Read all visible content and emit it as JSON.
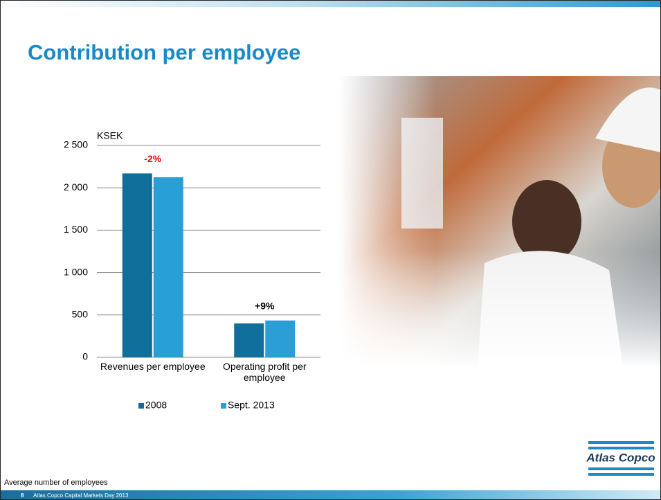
{
  "chart_data": {
    "type": "bar",
    "title": "Contribution per employee",
    "y_label": "KSEK",
    "categories": [
      "Revenues per employee",
      "Operating profit per employee"
    ],
    "series": [
      {
        "name": "2008",
        "color": "#0f6f9a",
        "values": [
          2170,
          400
        ]
      },
      {
        "name": "Sept. 2013",
        "color": "#2a9fd6",
        "values": [
          2125,
          435
        ]
      }
    ],
    "annotations": [
      {
        "text": "-2%",
        "color": "#ff0000"
      },
      {
        "text": "+9%",
        "color": "#000000"
      }
    ],
    "ylim": [
      0,
      2500
    ],
    "yticks": [
      0,
      500,
      {
        "value": 1000,
        "label": "1 000"
      },
      {
        "value": 1500,
        "label": "1 500"
      },
      {
        "value": 2000,
        "label": "2 000"
      },
      {
        "value": 2500,
        "label": "2 500"
      }
    ],
    "grid": true,
    "legend": "bottom"
  },
  "slide": {
    "footnote": "Average number of employees",
    "page_number": "8",
    "footer": "Atlas Copco Capital Markets Day 2013",
    "logo": "Atlas Copco"
  }
}
